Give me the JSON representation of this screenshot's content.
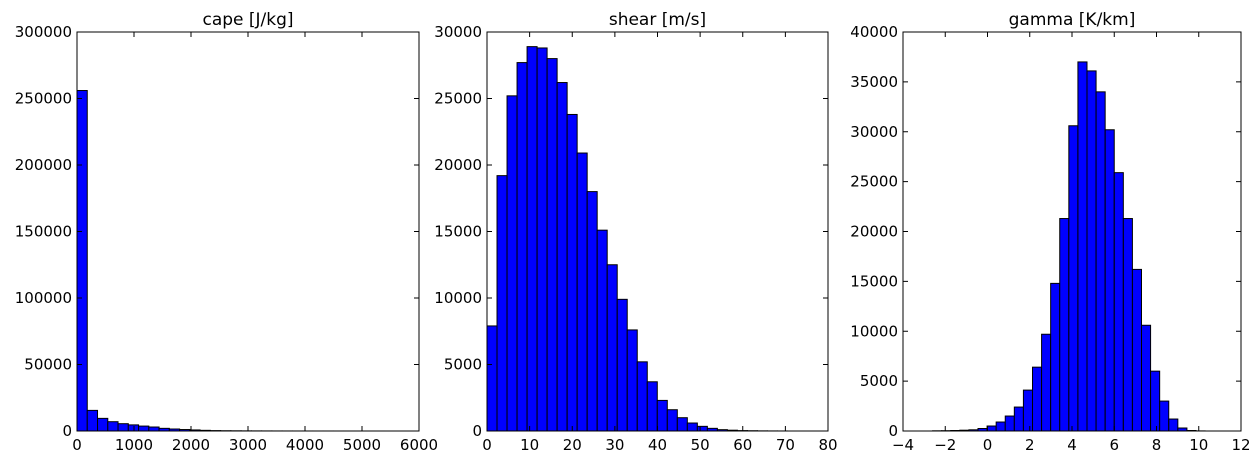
{
  "chart_data": [
    {
      "type": "bar",
      "title": "cape [J/kg]",
      "xlabel": "",
      "ylabel": "",
      "xlim": [
        0,
        6000
      ],
      "ylim": [
        0,
        300000
      ],
      "xticks": [
        0,
        1000,
        2000,
        3000,
        4000,
        5000,
        6000
      ],
      "yticks": [
        0,
        50000,
        100000,
        150000,
        200000,
        250000,
        300000
      ],
      "bin_edges": [
        0,
        180,
        360,
        540,
        720,
        900,
        1080,
        1260,
        1440,
        1620,
        1800,
        1980,
        2160,
        2340,
        2520,
        2700,
        2880,
        3060,
        3240,
        3420,
        3600,
        3780,
        3960,
        4140,
        4320,
        4500,
        4680,
        4860,
        5040,
        5220,
        5400
      ],
      "values": [
        256000,
        15500,
        9500,
        7000,
        5500,
        4600,
        3700,
        3000,
        2000,
        1500,
        1100,
        800,
        500,
        300,
        200,
        150,
        100,
        80,
        60,
        40,
        30,
        20,
        15,
        10,
        8,
        5,
        4,
        3,
        2,
        1
      ],
      "grid": false,
      "color": "#0000ff"
    },
    {
      "type": "bar",
      "title": "shear [m/s]",
      "xlabel": "",
      "ylabel": "",
      "xlim": [
        0,
        80
      ],
      "ylim": [
        0,
        30000
      ],
      "xticks": [
        0,
        10,
        20,
        30,
        40,
        50,
        60,
        70,
        80
      ],
      "yticks": [
        0,
        5000,
        10000,
        15000,
        20000,
        25000,
        30000
      ],
      "bin_edges": [
        0,
        2.35,
        4.7,
        7.05,
        9.4,
        11.75,
        14.1,
        16.45,
        18.8,
        21.15,
        23.5,
        25.85,
        28.2,
        30.55,
        32.9,
        35.25,
        37.6,
        39.95,
        42.3,
        44.65,
        47.0,
        49.35,
        51.7,
        54.05,
        56.4,
        58.75,
        61.1,
        63.45,
        65.8,
        68.15,
        70.5
      ],
      "values": [
        7900,
        19200,
        25200,
        27700,
        28900,
        28800,
        28000,
        26200,
        23800,
        20900,
        18000,
        15100,
        12500,
        9900,
        7600,
        5200,
        3700,
        2300,
        1600,
        1000,
        600,
        350,
        200,
        100,
        60,
        30,
        20,
        10,
        5,
        3
      ],
      "grid": false,
      "color": "#0000ff"
    },
    {
      "type": "bar",
      "title": "gamma [K/km]",
      "xlabel": "",
      "ylabel": "",
      "xlim": [
        -4,
        12
      ],
      "ylim": [
        0,
        40000
      ],
      "xticks": [
        -4,
        -2,
        0,
        2,
        4,
        6,
        8,
        10,
        12
      ],
      "yticks": [
        0,
        5000,
        10000,
        15000,
        20000,
        25000,
        30000,
        35000,
        40000
      ],
      "bin_edges": [
        -2.6,
        -2.17,
        -1.74,
        -1.31,
        -0.88,
        -0.45,
        -0.02,
        0.41,
        0.84,
        1.27,
        1.7,
        2.13,
        2.56,
        2.99,
        3.42,
        3.85,
        4.28,
        4.71,
        5.14,
        5.57,
        6.0,
        6.43,
        6.86,
        7.29,
        7.72,
        8.15,
        8.58,
        9.01,
        9.44,
        9.87,
        10.3
      ],
      "values": [
        20,
        30,
        50,
        80,
        120,
        250,
        500,
        900,
        1500,
        2400,
        4100,
        6400,
        9700,
        14800,
        21300,
        30600,
        37000,
        36100,
        34000,
        30200,
        25900,
        21300,
        16200,
        10600,
        6000,
        3000,
        1200,
        300,
        50,
        10
      ],
      "grid": false,
      "color": "#0000ff"
    }
  ]
}
